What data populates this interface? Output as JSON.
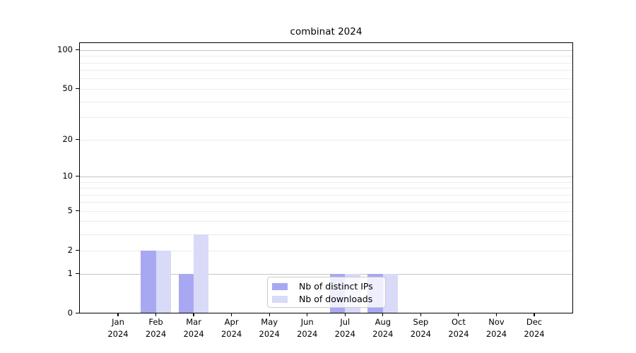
{
  "title": "combinat 2024",
  "chart_data": {
    "type": "bar",
    "title": "combinat 2024",
    "categories": [
      "Jan",
      "Feb",
      "Mar",
      "Apr",
      "May",
      "Jun",
      "Jul",
      "Aug",
      "Sep",
      "Oct",
      "Nov",
      "Dec"
    ],
    "category_year": "2024",
    "series": [
      {
        "name": "Nb of distinct IPs",
        "color": "#a8a8f2",
        "values": [
          0,
          2,
          1,
          0,
          0,
          0,
          1,
          1,
          0,
          0,
          0,
          0
        ]
      },
      {
        "name": "Nb of downloads",
        "color": "#d9d9f8",
        "values": [
          0,
          2,
          3,
          0,
          0,
          0,
          1,
          1,
          0,
          0,
          0,
          0
        ]
      }
    ],
    "yscale": "log(1+y)",
    "ylim": [
      0,
      117
    ],
    "yticks": [
      0,
      1,
      2,
      5,
      10,
      20,
      50,
      100
    ],
    "decade_ticks": [
      1,
      10,
      100
    ],
    "minor_gridlines": [
      3,
      4,
      6,
      7,
      8,
      9,
      30,
      40,
      60,
      70,
      80,
      90
    ],
    "grid": "horizontal",
    "legend_position": "lower center"
  },
  "legend": {
    "items": [
      {
        "label": "Nb of distinct IPs",
        "color": "#a8a8f2"
      },
      {
        "label": "Nb of downloads",
        "color": "#d9d9f8"
      }
    ]
  },
  "colors": {
    "major_grid": "#c4c4c4",
    "minor_grid": "#ececec",
    "axis": "#000000",
    "background": "#ffffff"
  }
}
